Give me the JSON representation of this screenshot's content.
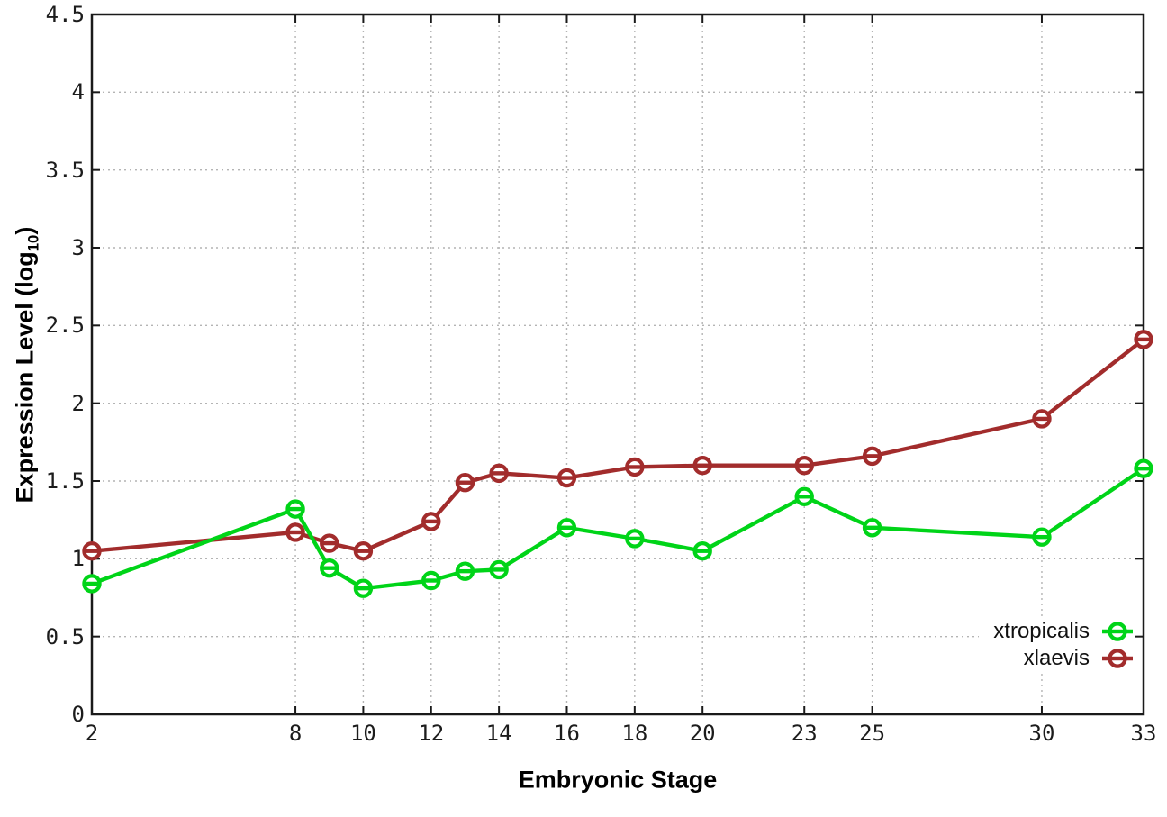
{
  "chart_data": {
    "type": "line",
    "xlabel": "Embryonic Stage",
    "ylabel": "Expression Level (log10)",
    "ylabel_parts": {
      "prefix": "Expression Level (log",
      "sub": "10",
      "suffix": ")"
    },
    "xlim": [
      2,
      33
    ],
    "ylim": [
      0,
      4.5
    ],
    "x_ticks": [
      2,
      8,
      10,
      12,
      14,
      16,
      18,
      20,
      23,
      25,
      30,
      33
    ],
    "y_ticks": [
      0,
      0.5,
      1,
      1.5,
      2,
      2.5,
      3,
      3.5,
      4,
      4.5
    ],
    "grid": true,
    "legend_position": "inside-right-bottom",
    "x": [
      2,
      8,
      9,
      10,
      12,
      13,
      14,
      16,
      18,
      20,
      23,
      25,
      30,
      33
    ],
    "series": [
      {
        "name": "xtropicalis",
        "color": "#00d418",
        "values": [
          0.84,
          1.32,
          0.94,
          0.81,
          0.86,
          0.92,
          0.93,
          1.2,
          1.13,
          1.05,
          1.4,
          1.2,
          1.14,
          1.58
        ]
      },
      {
        "name": "xlaevis",
        "color": "#a22c2c",
        "values": [
          1.05,
          1.17,
          1.1,
          1.05,
          1.24,
          1.49,
          1.55,
          1.52,
          1.59,
          1.6,
          1.6,
          1.66,
          1.9,
          2.41
        ]
      }
    ],
    "style": {
      "border_color": "#1a1a1a",
      "grid_color": "#b4b4b4",
      "background": "#ffffff"
    }
  }
}
